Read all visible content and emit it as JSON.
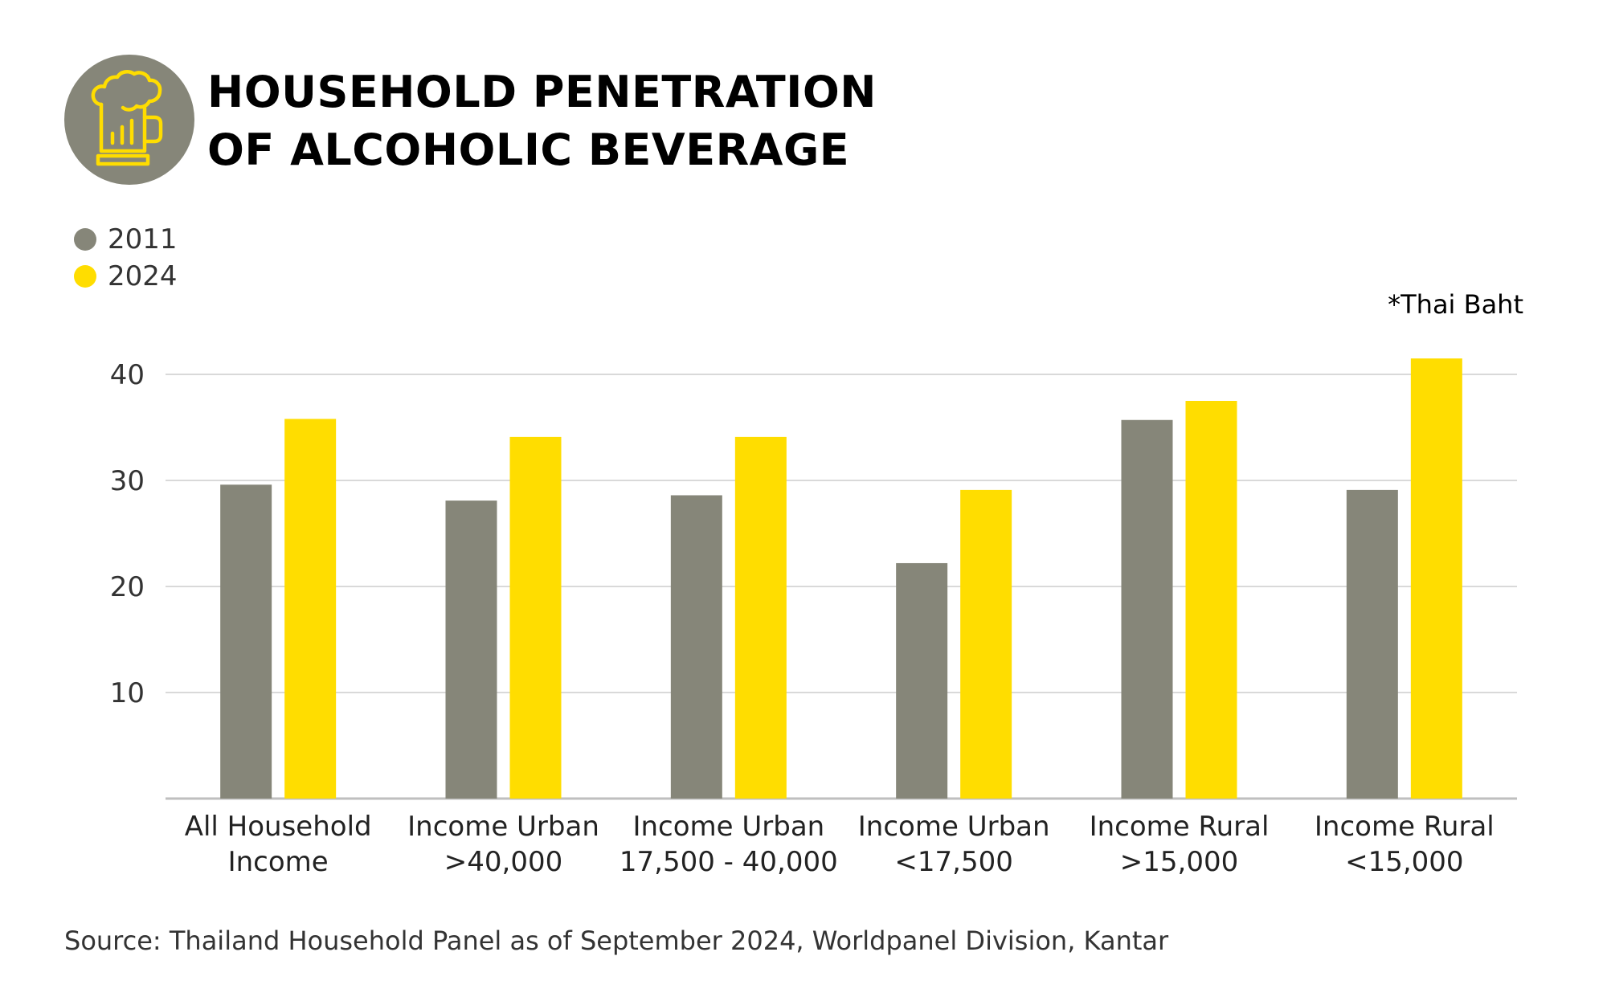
{
  "header": {
    "title_line1": "HOUSEHOLD PENETRATION",
    "title_line2": "OF ALCOHOLIC BEVERAGE",
    "logo_icon": "beer-mug-bar-chart-icon"
  },
  "legend": {
    "items": [
      {
        "label": "2011",
        "color": "#868679"
      },
      {
        "label": "2024",
        "color": "#FFDD00"
      }
    ]
  },
  "note": "*Thai Baht",
  "source": "Source: Thailand Household Panel as of September 2024, Worldpanel Division, Kantar",
  "colors": {
    "series_2011": "#868679",
    "series_2024": "#FFDD00",
    "logo_circle": "#868679",
    "logo_line": "#FFDD00",
    "grid": "#d9d9d9",
    "axis": "#bfbfbf"
  },
  "chart_data": {
    "type": "bar",
    "title": "HOUSEHOLD PENETRATION OF ALCOHOLIC BEVERAGE",
    "categories": [
      [
        "All Household",
        "Income"
      ],
      [
        "Income Urban",
        ">40,000"
      ],
      [
        "Income Urban",
        "17,500 - 40,000"
      ],
      [
        "Income Urban",
        "<17,500"
      ],
      [
        "Income Rural",
        ">15,000"
      ],
      [
        "Income Rural",
        "<15,000"
      ]
    ],
    "series": [
      {
        "name": "2011",
        "values": [
          29.6,
          28.1,
          28.6,
          22.2,
          35.7,
          29.1
        ]
      },
      {
        "name": "2024",
        "values": [
          35.8,
          34.1,
          34.1,
          29.1,
          37.5,
          41.5
        ]
      }
    ],
    "y_ticks": [
      10,
      20,
      30,
      40
    ],
    "ylim": [
      0,
      45
    ],
    "grid": true,
    "legend_position": "top-left"
  }
}
